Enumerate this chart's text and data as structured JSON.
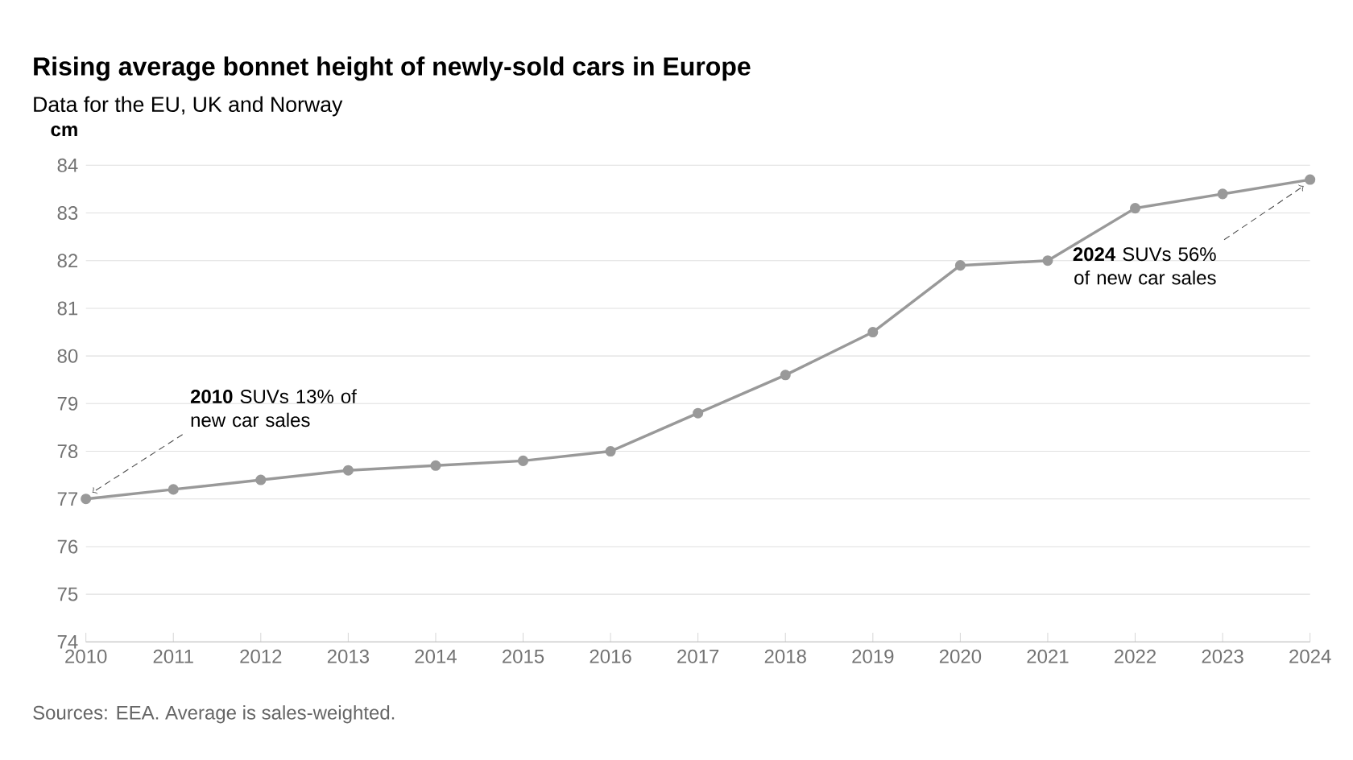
{
  "chart_data": {
    "type": "line",
    "title": "Rising average bonnet height of newly-sold cars in Europe",
    "subtitle": "Data for the EU, UK and Norway",
    "ylabel": "cm",
    "x": [
      2010,
      2011,
      2012,
      2013,
      2014,
      2015,
      2016,
      2017,
      2018,
      2019,
      2020,
      2021,
      2022,
      2023,
      2024
    ],
    "series": [
      {
        "color": "#999999",
        "values": [
          77.0,
          77.2,
          77.4,
          77.6,
          77.7,
          77.8,
          78.0,
          78.8,
          79.6,
          80.5,
          81.9,
          82.0,
          83.1,
          83.4,
          83.7
        ]
      }
    ],
    "xlim": [
      2010,
      2024
    ],
    "xticks": [
      2010,
      2011,
      2012,
      2013,
      2014,
      2015,
      2016,
      2017,
      2018,
      2019,
      2020,
      2021,
      2022,
      2023,
      2024
    ],
    "ylim": [
      74,
      84
    ],
    "yticks": [
      74,
      75,
      76,
      77,
      78,
      79,
      80,
      81,
      82,
      83,
      84
    ],
    "grid": "y",
    "marker": "circle",
    "line_style": "solid",
    "annotations": [
      {
        "text": "**2010** SUVs 13% of new car sales",
        "x": 2010,
        "y": 77.0
      },
      {
        "text": "**2024** SUVs 56% of new car sales",
        "x": 2024,
        "y": 83.7
      },
      "Sources: EEA. Average is sales-weighted."
    ]
  }
}
